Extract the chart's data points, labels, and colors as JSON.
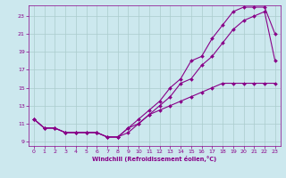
{
  "xlabel": "Windchill (Refroidissement éolien,°C)",
  "bg_color": "#cce8ee",
  "grid_color": "#aacccc",
  "line_color": "#880088",
  "xlim": [
    -0.5,
    23.5
  ],
  "ylim": [
    8.5,
    24.2
  ],
  "xticks": [
    0,
    1,
    2,
    3,
    4,
    5,
    6,
    7,
    8,
    9,
    10,
    11,
    12,
    13,
    14,
    15,
    16,
    17,
    18,
    19,
    20,
    21,
    22,
    23
  ],
  "yticks": [
    9,
    11,
    13,
    15,
    17,
    19,
    21,
    23
  ],
  "line1_x": [
    0,
    1,
    2,
    3,
    4,
    5,
    6,
    7,
    8,
    9,
    10,
    11,
    12,
    13,
    14,
    15,
    16,
    17,
    18,
    19,
    20,
    21,
    22,
    23
  ],
  "line1_y": [
    11.5,
    10.5,
    10.5,
    10.0,
    10.0,
    10.0,
    10.0,
    9.5,
    9.5,
    10.5,
    11.5,
    12.5,
    13.5,
    15.0,
    16.0,
    18.0,
    18.5,
    20.5,
    22.0,
    23.5,
    24.0,
    24.0,
    24.0,
    21.0
  ],
  "line2_x": [
    0,
    1,
    2,
    3,
    4,
    5,
    6,
    7,
    8,
    9,
    10,
    11,
    12,
    13,
    14,
    15,
    16,
    17,
    18,
    19,
    20,
    21,
    22,
    23
  ],
  "line2_y": [
    11.5,
    10.5,
    10.5,
    10.0,
    10.0,
    10.0,
    10.0,
    9.5,
    9.5,
    10.0,
    11.0,
    12.0,
    13.0,
    14.0,
    15.5,
    16.0,
    17.5,
    18.5,
    20.0,
    21.5,
    22.5,
    23.0,
    23.5,
    18.0
  ],
  "line3_x": [
    0,
    1,
    2,
    3,
    4,
    5,
    6,
    7,
    8,
    9,
    10,
    11,
    12,
    13,
    14,
    15,
    16,
    17,
    18,
    19,
    20,
    21,
    22,
    23
  ],
  "line3_y": [
    11.5,
    10.5,
    10.5,
    10.0,
    10.0,
    10.0,
    10.0,
    9.5,
    9.5,
    10.5,
    11.0,
    12.0,
    12.5,
    13.0,
    13.5,
    14.0,
    14.5,
    15.0,
    15.5,
    15.5,
    15.5,
    15.5,
    15.5,
    15.5
  ]
}
